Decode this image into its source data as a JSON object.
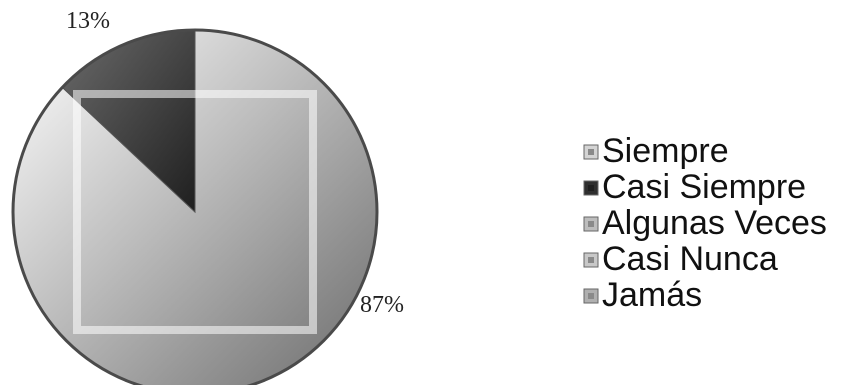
{
  "chart_data": {
    "type": "pie",
    "title": "",
    "slices": [
      {
        "label": "Siempre",
        "value": 87,
        "data_label": "87%",
        "color": "#d4d4d4"
      },
      {
        "label": "Casi Siempre",
        "value": 13,
        "data_label": "13%",
        "color": "#2e2e2e"
      },
      {
        "label": "Algunas Veces",
        "value": 0,
        "data_label": "",
        "color": "#bdbdbd"
      },
      {
        "label": "Casi Nunca",
        "value": 0,
        "data_label": "",
        "color": "#c8c8c8"
      },
      {
        "label": "Jamás",
        "value": 0,
        "data_label": "",
        "color": "#b0b0b0"
      }
    ],
    "legend": {
      "position": "right",
      "entries": [
        "Siempre",
        "Casi Siempre",
        "Algunas Veces",
        "Casi Nunca",
        "Jamás"
      ]
    }
  }
}
